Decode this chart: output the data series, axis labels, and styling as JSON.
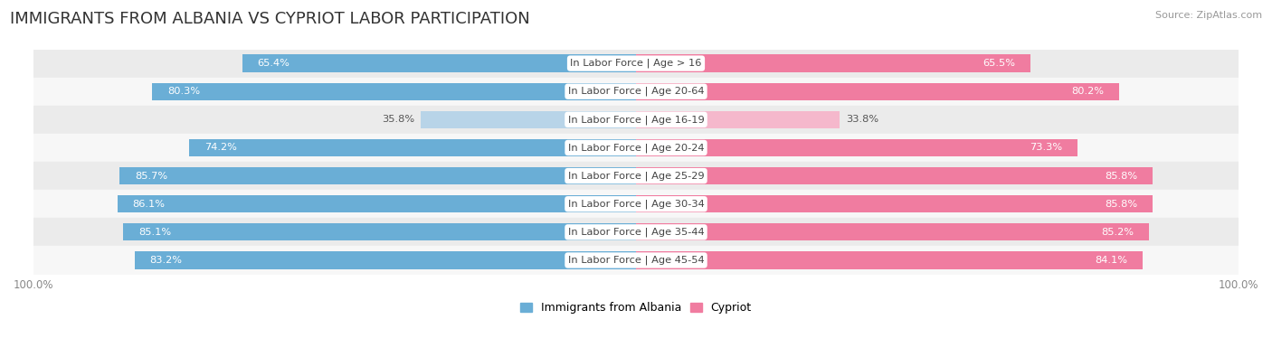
{
  "title": "IMMIGRANTS FROM ALBANIA VS CYPRIOT LABOR PARTICIPATION",
  "source": "Source: ZipAtlas.com",
  "categories": [
    "In Labor Force | Age > 16",
    "In Labor Force | Age 20-64",
    "In Labor Force | Age 16-19",
    "In Labor Force | Age 20-24",
    "In Labor Force | Age 25-29",
    "In Labor Force | Age 30-34",
    "In Labor Force | Age 35-44",
    "In Labor Force | Age 45-54"
  ],
  "albania_values": [
    65.4,
    80.3,
    35.8,
    74.2,
    85.7,
    86.1,
    85.1,
    83.2
  ],
  "cypriot_values": [
    65.5,
    80.2,
    33.8,
    73.3,
    85.8,
    85.8,
    85.2,
    84.1
  ],
  "albania_color_strong": "#6aaed6",
  "albania_color_weak": "#b8d4e8",
  "cypriot_color_strong": "#f07ca0",
  "cypriot_color_weak": "#f5b8cc",
  "row_bg_even": "#ebebeb",
  "row_bg_odd": "#f7f7f7",
  "max_value": 100.0,
  "bar_height": 0.62,
  "title_fontsize": 13,
  "label_fontsize": 8.2,
  "tick_fontsize": 8.5,
  "legend_fontsize": 9,
  "source_fontsize": 8,
  "threshold": 60
}
